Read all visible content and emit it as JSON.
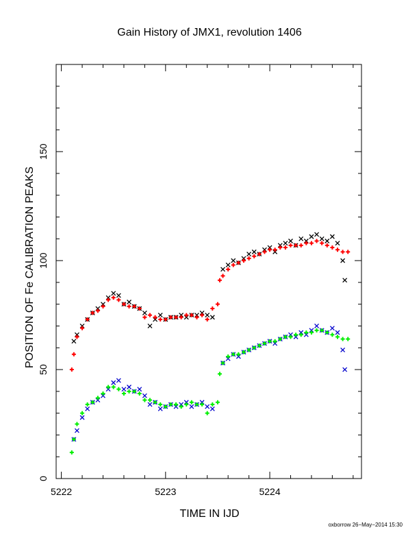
{
  "chart_data": {
    "type": "scatter",
    "title": "Gain History of JMX1, revolution 1406",
    "xlabel": "TIME IN IJD",
    "ylabel": "POSITION OF Fe CALIBRATION PEAKS",
    "xlim": [
      5221.95,
      5224.88
    ],
    "ylim": [
      0,
      190
    ],
    "x_ticks": [
      5222,
      5223,
      5224
    ],
    "x_tick_labels": [
      "5222",
      "5223",
      "5224"
    ],
    "y_ticks": [
      0,
      50,
      100,
      150
    ],
    "y_tick_labels": [
      "0",
      "50",
      "100",
      "150"
    ],
    "grid": false,
    "series": [
      {
        "marker": "x",
        "color": "#000000",
        "x": [
          5222.12,
          5222.15,
          5222.2,
          5222.25,
          5222.3,
          5222.35,
          5222.4,
          5222.45,
          5222.5,
          5222.55,
          5222.6,
          5222.65,
          5222.7,
          5222.75,
          5222.8,
          5222.85,
          5222.9,
          5222.95,
          5223.0,
          5223.05,
          5223.1,
          5223.15,
          5223.2,
          5223.25,
          5223.3,
          5223.35,
          5223.4,
          5223.45,
          5223.55,
          5223.6,
          5223.65,
          5223.7,
          5223.75,
          5223.8,
          5223.85,
          5223.9,
          5223.95,
          5224.0,
          5224.05,
          5224.1,
          5224.15,
          5224.2,
          5224.25,
          5224.3,
          5224.35,
          5224.4,
          5224.45,
          5224.5,
          5224.55,
          5224.6,
          5224.65,
          5224.7,
          5224.72
        ],
        "y": [
          63,
          66,
          70,
          73,
          76,
          78,
          80,
          83,
          85,
          84,
          80,
          81,
          79,
          78,
          76,
          70,
          73,
          75,
          73,
          74,
          74,
          75,
          74,
          75,
          75,
          76,
          75,
          74,
          96,
          98,
          100,
          99,
          101,
          103,
          104,
          103,
          105,
          106,
          104,
          107,
          108,
          109,
          107,
          110,
          109,
          111,
          112,
          110,
          109,
          111,
          108,
          100,
          91
        ]
      },
      {
        "marker": "+",
        "color": "#ff0000",
        "x": [
          5222.1,
          5222.12,
          5222.15,
          5222.2,
          5222.25,
          5222.3,
          5222.35,
          5222.4,
          5222.45,
          5222.5,
          5222.55,
          5222.6,
          5222.65,
          5222.7,
          5222.75,
          5222.8,
          5222.85,
          5222.9,
          5222.95,
          5223.0,
          5223.05,
          5223.1,
          5223.15,
          5223.2,
          5223.25,
          5223.3,
          5223.35,
          5223.4,
          5223.45,
          5223.5,
          5223.52,
          5223.55,
          5223.6,
          5223.65,
          5223.7,
          5223.75,
          5223.8,
          5223.85,
          5223.9,
          5223.95,
          5224.0,
          5224.05,
          5224.1,
          5224.15,
          5224.2,
          5224.25,
          5224.3,
          5224.35,
          5224.4,
          5224.45,
          5224.5,
          5224.55,
          5224.6,
          5224.65,
          5224.7,
          5224.75
        ],
        "y": [
          50,
          57,
          65,
          69,
          73,
          76,
          77,
          79,
          82,
          83,
          82,
          80,
          79,
          79,
          78,
          74,
          75,
          74,
          73,
          73,
          74,
          74,
          74,
          75,
          75,
          74,
          75,
          73,
          78,
          80,
          91,
          93,
          96,
          98,
          99,
          100,
          101,
          102,
          103,
          104,
          105,
          105,
          106,
          106,
          107,
          107,
          107,
          108,
          108,
          109,
          108,
          107,
          106,
          105,
          104,
          104
        ]
      },
      {
        "marker": "x",
        "color": "#0000cc",
        "x": [
          5222.12,
          5222.15,
          5222.2,
          5222.25,
          5222.3,
          5222.35,
          5222.4,
          5222.45,
          5222.5,
          5222.55,
          5222.6,
          5222.65,
          5222.7,
          5222.75,
          5222.8,
          5222.85,
          5222.9,
          5222.95,
          5223.0,
          5223.05,
          5223.1,
          5223.15,
          5223.2,
          5223.25,
          5223.3,
          5223.35,
          5223.4,
          5223.45,
          5223.55,
          5223.6,
          5223.65,
          5223.7,
          5223.75,
          5223.8,
          5223.85,
          5223.9,
          5223.95,
          5224.0,
          5224.05,
          5224.1,
          5224.15,
          5224.2,
          5224.25,
          5224.3,
          5224.35,
          5224.4,
          5224.45,
          5224.5,
          5224.55,
          5224.6,
          5224.65,
          5224.7,
          5224.72
        ],
        "y": [
          18,
          22,
          28,
          32,
          35,
          36,
          38,
          41,
          44,
          45,
          41,
          42,
          40,
          41,
          38,
          34,
          35,
          32,
          33,
          34,
          33,
          34,
          35,
          33,
          34,
          35,
          33,
          32,
          53,
          55,
          57,
          56,
          58,
          59,
          60,
          61,
          62,
          63,
          62,
          64,
          65,
          66,
          65,
          67,
          66,
          68,
          70,
          68,
          67,
          69,
          67,
          59,
          50
        ]
      },
      {
        "marker": "+",
        "color": "#00ee00",
        "x": [
          5222.1,
          5222.12,
          5222.15,
          5222.2,
          5222.25,
          5222.3,
          5222.35,
          5222.4,
          5222.45,
          5222.5,
          5222.55,
          5222.6,
          5222.65,
          5222.7,
          5222.75,
          5222.8,
          5222.85,
          5222.9,
          5222.95,
          5223.0,
          5223.05,
          5223.1,
          5223.15,
          5223.2,
          5223.25,
          5223.3,
          5223.35,
          5223.4,
          5223.45,
          5223.5,
          5223.52,
          5223.55,
          5223.6,
          5223.65,
          5223.7,
          5223.75,
          5223.8,
          5223.85,
          5223.9,
          5223.95,
          5224.0,
          5224.05,
          5224.1,
          5224.15,
          5224.2,
          5224.25,
          5224.3,
          5224.35,
          5224.4,
          5224.45,
          5224.5,
          5224.55,
          5224.6,
          5224.65,
          5224.7,
          5224.75
        ],
        "y": [
          12,
          18,
          25,
          30,
          34,
          35,
          37,
          39,
          42,
          42,
          41,
          39,
          40,
          40,
          39,
          36,
          36,
          35,
          34,
          33,
          34,
          34,
          33,
          34,
          35,
          34,
          34,
          30,
          34,
          35,
          48,
          53,
          56,
          57,
          57,
          58,
          59,
          60,
          61,
          62,
          63,
          63,
          64,
          65,
          65,
          66,
          66,
          67,
          67,
          68,
          68,
          67,
          66,
          65,
          64,
          64
        ]
      }
    ]
  },
  "footer": "oxborrow 26−May−2014 15:30"
}
